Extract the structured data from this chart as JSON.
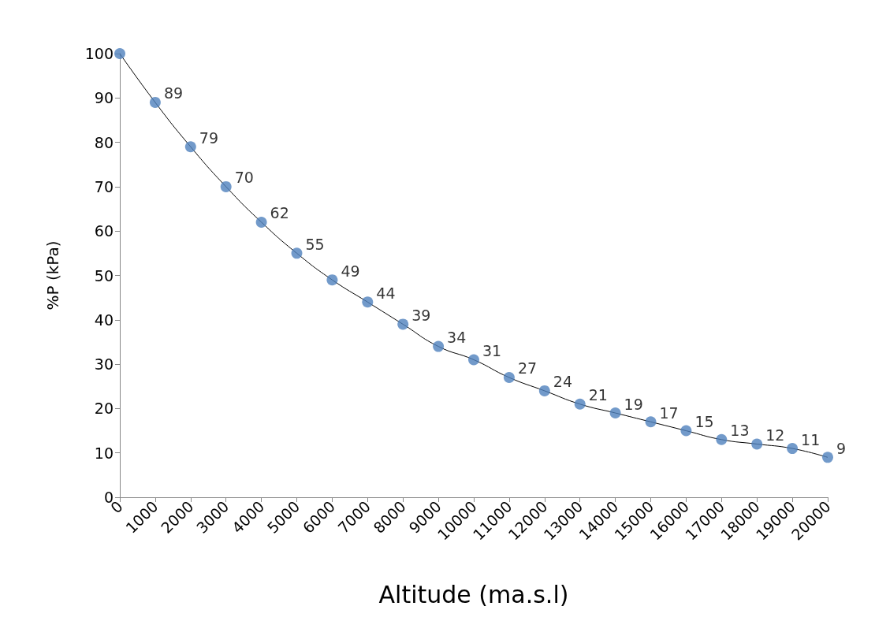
{
  "chart_data": {
    "type": "scatter",
    "xlabel": "Altitude (ma.s.l)",
    "ylabel": "%P (kPa)",
    "x": [
      0,
      1000,
      2000,
      3000,
      4000,
      5000,
      6000,
      7000,
      8000,
      9000,
      10000,
      11000,
      12000,
      13000,
      14000,
      15000,
      16000,
      17000,
      18000,
      19000,
      20000
    ],
    "series": [
      {
        "color": "#4f81bd",
        "marker": "circle",
        "values": [
          100,
          89,
          79,
          70,
          62,
          55,
          49,
          44,
          39,
          34,
          31,
          27,
          24,
          21,
          19,
          17,
          15,
          13,
          12,
          11,
          9
        ],
        "value_labels": [
          null,
          "89",
          "79",
          "70",
          "62",
          "55",
          "49",
          "44",
          "39",
          "34",
          "31",
          "27",
          "24",
          "21",
          "19",
          "17",
          "15",
          "13",
          "12",
          "11",
          "9"
        ]
      },
      {
        "type": "line",
        "color": "#000000",
        "marker": "none",
        "line_style": "solid",
        "values": [
          100,
          89,
          79,
          70,
          62,
          55,
          49,
          44,
          39,
          34,
          31,
          27,
          24,
          21,
          19,
          17,
          15,
          13,
          12,
          11,
          9
        ]
      }
    ],
    "xlim": [
      0,
      20000
    ],
    "xticks": [
      0,
      1000,
      2000,
      3000,
      4000,
      5000,
      6000,
      7000,
      8000,
      9000,
      10000,
      11000,
      12000,
      13000,
      14000,
      15000,
      16000,
      17000,
      18000,
      19000,
      20000
    ],
    "ylim": [
      0,
      100
    ],
    "yticks": [
      0,
      10,
      20,
      30,
      40,
      50,
      60,
      70,
      80,
      90,
      100
    ],
    "grid": false
  }
}
